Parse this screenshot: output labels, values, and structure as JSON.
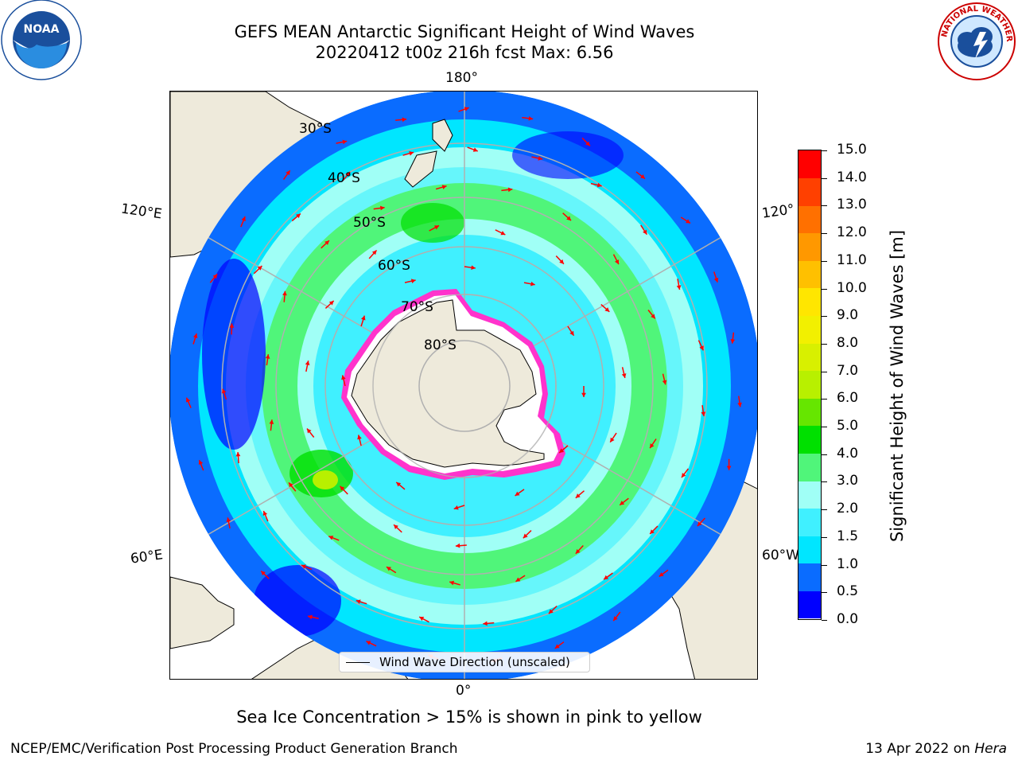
{
  "header": {
    "title_line1": "GEFS MEAN Antarctic Significant Height of Wind Waves",
    "title_line2": "20220412 t00z 216h fcst   Max: 6.56"
  },
  "logos": {
    "left": "NOAA",
    "right": "NATIONAL WEATHER SERVICE"
  },
  "map": {
    "projection": "south-polar-stereographic",
    "longitude_labels": [
      "180°",
      "120°E",
      "120°",
      "60°E",
      "60°W",
      "0°"
    ],
    "latitude_labels": [
      "30°S",
      "40°S",
      "50°S",
      "60°S",
      "70°S",
      "80°S"
    ],
    "legend_label": "Wind Wave Direction (unscaled)",
    "colors": {
      "land": "#eeeadb",
      "grid": "#b0b0b0",
      "arrow": "#ff0000",
      "ice_edge": "#ff33cc"
    }
  },
  "colorbar": {
    "label": "Significant Height of Wind Waves [m]",
    "ticks": [
      "0.0",
      "0.5",
      "1.0",
      "1.5",
      "2.0",
      "3.0",
      "4.0",
      "5.0",
      "6.0",
      "7.0",
      "8.0",
      "9.0",
      "10.0",
      "11.0",
      "12.0",
      "13.0",
      "14.0",
      "15.0"
    ],
    "colors": [
      "#0000ff",
      "#0a6cff",
      "#00e6ff",
      "#40f0ff",
      "#a0fff6",
      "#50f57a",
      "#00e000",
      "#66e600",
      "#b8f000",
      "#d8f000",
      "#f2f000",
      "#ffe600",
      "#ffc000",
      "#ff9800",
      "#ff7000",
      "#ff4000",
      "#ff0000"
    ]
  },
  "notes": {
    "sea_ice": "Sea Ice Concentration > 15% is shown in pink to yellow"
  },
  "footer": {
    "left": "NCEP/EMC/Verification Post Processing Product Generation Branch",
    "right_date": "13 Apr 2022 on ",
    "right_host": "Hera"
  }
}
